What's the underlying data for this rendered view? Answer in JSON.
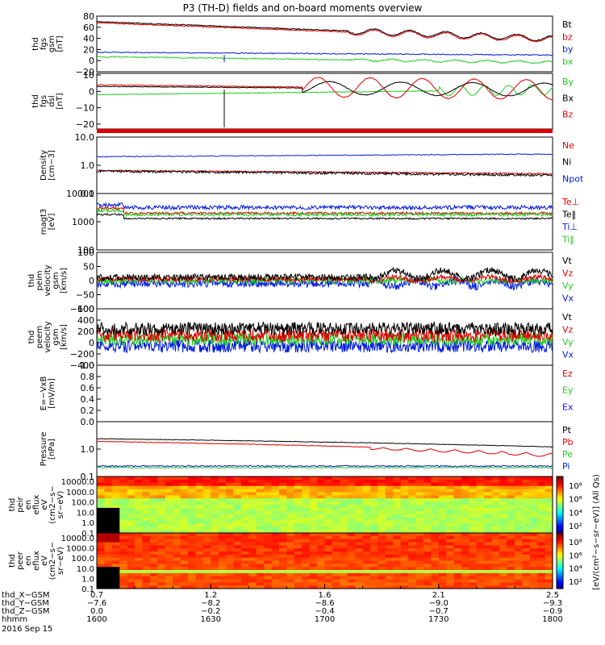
{
  "title": "P3 (TH-D) fields and on-board moments overview",
  "colors": {
    "black": "#000000",
    "red": "#e00000",
    "green": "#22cc22",
    "blue": "#0018e0",
    "orange": "#f0a020"
  },
  "chart_data": [
    {
      "id": "fgs_mag",
      "type": "line",
      "ylabel_lines": [
        "thd",
        "fgs",
        "gsm",
        "[nT]"
      ],
      "ylim": [
        -20,
        80
      ],
      "yticks": [
        "80",
        "60",
        "40",
        "20",
        "0",
        "−20"
      ],
      "series": [
        {
          "name": "Bt",
          "color": "black"
        },
        {
          "name": "bz",
          "color": "red"
        },
        {
          "name": "by",
          "color": "blue"
        },
        {
          "name": "bx",
          "color": "green"
        }
      ]
    },
    {
      "id": "fgs_dsl",
      "type": "line",
      "ylabel_lines": [
        "thd",
        "fgs",
        "dsl",
        "[nT]"
      ],
      "ylim": [
        -23,
        11
      ],
      "yticks": [
        "10",
        "0",
        "−10",
        "−20"
      ],
      "series": [
        {
          "name": "By",
          "color": "green"
        },
        {
          "name": "Bx",
          "color": "black"
        },
        {
          "name": "Bz",
          "color": "red"
        }
      ]
    },
    {
      "id": "density",
      "type": "line",
      "ylabel_lines": [
        "Density",
        "[cm−3]"
      ],
      "ylim": [
        0.1,
        10
      ],
      "log": true,
      "yticks": [
        "10.0",
        "1.0",
        "0.1"
      ],
      "series": [
        {
          "name": "Ne",
          "color": "red"
        },
        {
          "name": "Ni",
          "color": "black"
        },
        {
          "name": "Npot",
          "color": "blue"
        }
      ]
    },
    {
      "id": "temp",
      "type": "line",
      "ylabel_lines": [
        "magt3",
        "[eV]"
      ],
      "ylim": [
        100,
        10000
      ],
      "log": true,
      "yticks": [
        "10000",
        "1000",
        "100"
      ],
      "series": [
        {
          "name": "Te⊥",
          "color": "red"
        },
        {
          "name": "Te‖",
          "color": "black"
        },
        {
          "name": "Ti⊥",
          "color": "blue"
        },
        {
          "name": "Ti‖",
          "color": "green"
        }
      ]
    },
    {
      "id": "peim_vel",
      "type": "line",
      "ylabel_lines": [
        "thd",
        "peim",
        "velocity",
        "gsm",
        "[km/s]"
      ],
      "ylim": [
        -100,
        100
      ],
      "yticks": [
        "100",
        "50",
        "0",
        "−50",
        "−100"
      ],
      "series": [
        {
          "name": "Vt",
          "color": "black"
        },
        {
          "name": "Vz",
          "color": "red"
        },
        {
          "name": "Vy",
          "color": "green"
        },
        {
          "name": "Vx",
          "color": "blue"
        }
      ]
    },
    {
      "id": "peem_vel",
      "type": "line",
      "ylabel_lines": [
        "thd",
        "peem",
        "velocity",
        "gsm",
        "[km/s]"
      ],
      "ylim": [
        -400,
        600
      ],
      "yticks": [
        "600",
        "400",
        "200",
        "0",
        "−200",
        "−400"
      ],
      "series": [
        {
          "name": "Vt",
          "color": "black"
        },
        {
          "name": "Vz",
          "color": "red"
        },
        {
          "name": "Vy",
          "color": "green"
        },
        {
          "name": "Vx",
          "color": "blue"
        }
      ]
    },
    {
      "id": "efield",
      "type": "line",
      "ylabel_lines": [
        "E=−VxB",
        "[mV/m]"
      ],
      "ylim": [
        0,
        1
      ],
      "yticks": [
        "1.0",
        "0.8",
        "0.6",
        "0.4",
        "0.2",
        "0.0"
      ],
      "series": [
        {
          "name": "Ez",
          "color": "red"
        },
        {
          "name": "Ey",
          "color": "green"
        },
        {
          "name": "Ex",
          "color": "blue"
        }
      ]
    },
    {
      "id": "pressure",
      "type": "line",
      "ylabel_lines": [
        "Pressure",
        "[nPa]"
      ],
      "ylim": [
        0.1,
        10
      ],
      "log": true,
      "yticks": [
        "1.0",
        "0.1"
      ],
      "series": [
        {
          "name": "Pt",
          "color": "black"
        },
        {
          "name": "Pb",
          "color": "red"
        },
        {
          "name": "Pe",
          "color": "green"
        },
        {
          "name": "Pi",
          "color": "blue"
        }
      ]
    },
    {
      "id": "peir_spec",
      "type": "heatmap",
      "ylabel_lines": [
        "thd",
        "peir",
        "en",
        "eflux",
        "eV",
        "(cm2−s−",
        "sr−eV)"
      ],
      "ylim": [
        0.1,
        30000
      ],
      "log": true,
      "yticks": [
        "10000.0",
        "1000.0",
        "100.0",
        "10.0",
        "1.0",
        "0.1"
      ],
      "colorbar_label": "[eV/(cm²−s−sr−eV)] (All Qs)",
      "colorbar_ticks": [
        "10⁸",
        "10⁶",
        "10⁴",
        "10²"
      ]
    },
    {
      "id": "peer_spec",
      "type": "heatmap",
      "ylabel_lines": [
        "thd",
        "peer",
        "en",
        "eflux",
        "eV",
        "(cm2−s−",
        "sr−eV)"
      ],
      "ylim": [
        0.1,
        30000
      ],
      "log": true,
      "yticks": [
        "10000.0",
        "1000.0",
        "100.0",
        "10.0",
        "1.0",
        "0.1"
      ],
      "colorbar_label": "[eV/(cm²−s−sr−eV)]",
      "colorbar_ticks": [
        "10⁸",
        "10⁶",
        "10⁴",
        "10²"
      ]
    }
  ],
  "time_axis": {
    "rows": [
      {
        "label": "thd_X−GSM",
        "values": [
          "0.7",
          "1.2",
          "1.6",
          "2.1",
          "2.5"
        ]
      },
      {
        "label": "thd_Y−GSM",
        "values": [
          "−7.6",
          "−8.2",
          "−8.6",
          "−9.0",
          "−9.3"
        ]
      },
      {
        "label": "thd_Z−GSM",
        "values": [
          "0.0",
          "−0.2",
          "−0.4",
          "−0.7",
          "−0.9"
        ]
      },
      {
        "label": "hhmm",
        "values": [
          "1600",
          "1630",
          "1700",
          "1730",
          "1800"
        ]
      }
    ],
    "date": "2016 Sep 15",
    "tick_times_min": [
      0,
      30,
      60,
      90,
      120
    ]
  }
}
